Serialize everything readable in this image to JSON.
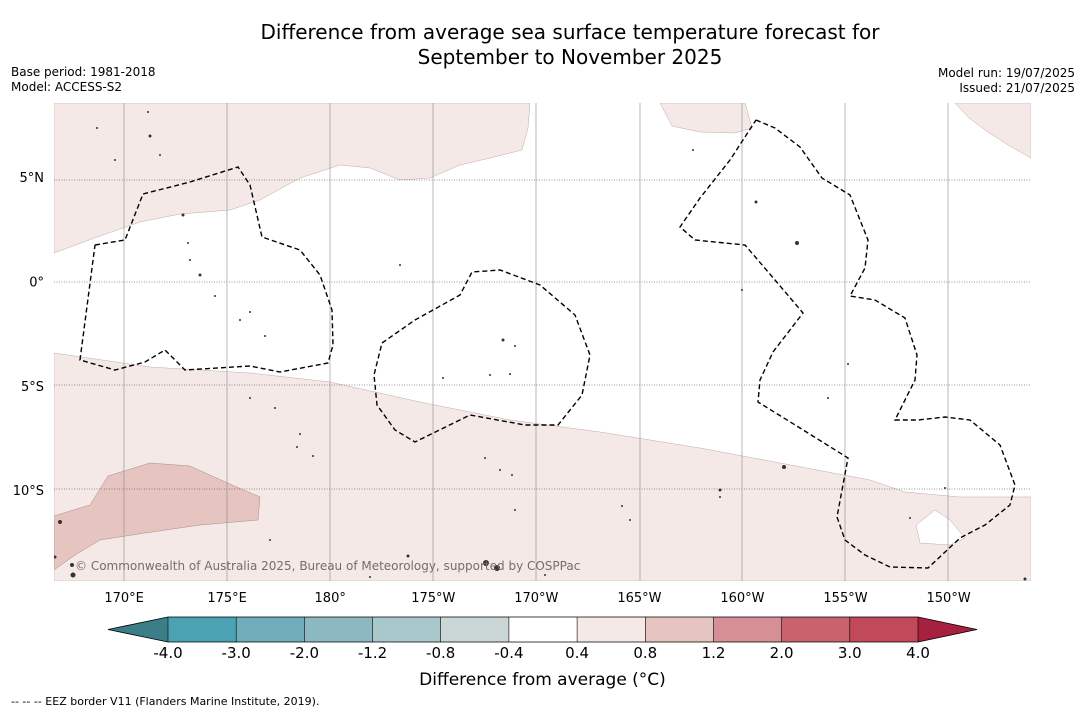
{
  "title_line1": "Difference from average sea surface temperature forecast for",
  "title_line2": "September to November 2025",
  "meta_left": {
    "base_period": "Base period: 1981-2018",
    "model": "Model: ACCESS-S2"
  },
  "meta_right": {
    "model_run": "Model run: 19/07/2025",
    "issued": "Issued: 21/07/2025"
  },
  "copyright": "© Commonwealth of Australia 2025, Bureau of Meteorology, supported by COSPPac",
  "lat_labels": [
    {
      "label": "5°N",
      "lat": 5
    },
    {
      "label": "0°",
      "lat": 0
    },
    {
      "label": "5°S",
      "lat": -5
    },
    {
      "label": "10°S",
      "lat": -10
    }
  ],
  "lon_labels": [
    {
      "label": "170°E",
      "lon": 170
    },
    {
      "label": "175°E",
      "lon": 175
    },
    {
      "label": "180°",
      "lon": 180
    },
    {
      "label": "175°W",
      "lon": 185
    },
    {
      "label": "170°W",
      "lon": 190
    },
    {
      "label": "165°W",
      "lon": 195
    },
    {
      "label": "160°W",
      "lon": 200
    },
    {
      "label": "155°W",
      "lon": 205
    },
    {
      "label": "150°W",
      "lon": 210
    }
  ],
  "map_extent": {
    "lon_min": 166.6,
    "lon_max": 214.0,
    "lat_min": -14.3,
    "lat_max": 8.6
  },
  "colorbar": {
    "title": "Difference from average (°C)",
    "tick_labels": [
      "-4.0",
      "-3.0",
      "-2.0",
      "-1.2",
      "-0.8",
      "-0.4",
      "0.4",
      "0.8",
      "1.2",
      "2.0",
      "3.0",
      "4.0"
    ],
    "colors": [
      "#3b7e88",
      "#4aa2b3",
      "#6fadbb",
      "#8cb8c2",
      "#a9c8cc",
      "#cbd7d7",
      "#ffffff",
      "#f5e9e8",
      "#e6c4c0",
      "#d58f95",
      "#c9626c",
      "#c04a59",
      "#a7203f"
    ]
  },
  "footnote": "-- -- -- EEZ border V11 (Flanders Marine Institute, 2019)."
}
